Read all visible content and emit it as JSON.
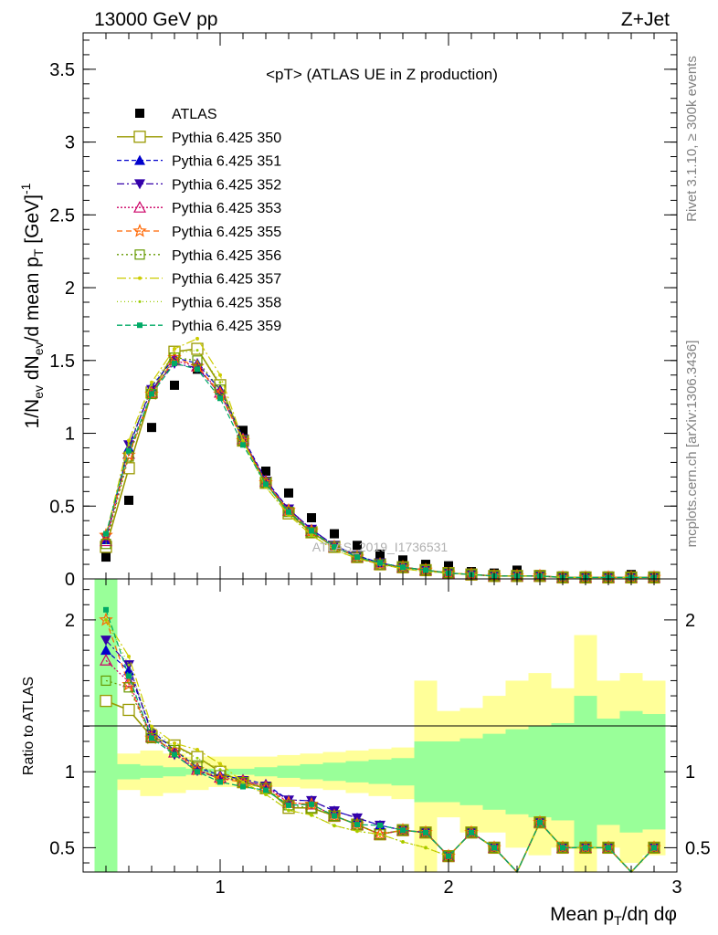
{
  "header": {
    "left": "13000 GeV pp",
    "right": "Z+Jet"
  },
  "side": {
    "rivet": "Rivet 3.1.10, ≥ 300k events",
    "mcplots": "mcplots.cern.ch [arXiv:1306.3436]"
  },
  "chart_data": [
    {
      "type": "scatter",
      "title": "<pT> (ATLAS UE in Z production)",
      "watermark": "ATLAS_2019_I1736531",
      "ylabel": "1/N_ev dN_ev/d mean p_T [GeV]^-1",
      "xlim": [
        0.4,
        3.0
      ],
      "ylim": [
        0,
        3.75
      ],
      "yticks": [
        "0",
        "0.5",
        "1",
        "1.5",
        "2",
        "2.5",
        "3",
        "3.5"
      ],
      "x": [
        0.5,
        0.6,
        0.7,
        0.8,
        0.9,
        1.0,
        1.1,
        1.2,
        1.3,
        1.4,
        1.5,
        1.6,
        1.7,
        1.8,
        1.9,
        2.0,
        2.1,
        2.2,
        2.3,
        2.4,
        2.5,
        2.6,
        2.7,
        2.8,
        2.9
      ],
      "series": [
        {
          "name": "ATLAS",
          "color": "#000000",
          "values": [
            0.15,
            0.54,
            1.04,
            1.33,
            1.44,
            1.33,
            1.02,
            0.74,
            0.59,
            0.42,
            0.31,
            0.23,
            0.17,
            0.13,
            0.1,
            0.09,
            0.05,
            0.04,
            0.06,
            0.03,
            0.02,
            0.02,
            0.02,
            0.03,
            0.02
          ]
        },
        {
          "name": "Pythia 6.425 350",
          "color": "#999900",
          "values": [
            0.22,
            0.76,
            1.28,
            1.56,
            1.58,
            1.33,
            0.95,
            0.66,
            0.45,
            0.32,
            0.22,
            0.15,
            0.1,
            0.08,
            0.06,
            0.04,
            0.03,
            0.02,
            0.02,
            0.02,
            0.01,
            0.01,
            0.01,
            0.01,
            0.01
          ]
        },
        {
          "name": "Pythia 6.425 351",
          "color": "#0000cc",
          "values": [
            0.27,
            0.9,
            1.32,
            1.52,
            1.48,
            1.3,
            0.97,
            0.68,
            0.48,
            0.34,
            0.23,
            0.16,
            0.11,
            0.08,
            0.06,
            0.04,
            0.03,
            0.02,
            0.02,
            0.02,
            0.01,
            0.01,
            0.01,
            0.01,
            0.01
          ]
        },
        {
          "name": "Pythia 6.425 352",
          "color": "#3300aa",
          "values": [
            0.28,
            0.92,
            1.3,
            1.48,
            1.45,
            1.27,
            0.96,
            0.67,
            0.48,
            0.34,
            0.23,
            0.16,
            0.11,
            0.08,
            0.06,
            0.04,
            0.03,
            0.02,
            0.02,
            0.02,
            0.01,
            0.01,
            0.01,
            0.01,
            0.01
          ]
        },
        {
          "name": "Pythia 6.425 353",
          "color": "#cc0066",
          "values": [
            0.26,
            0.86,
            1.28,
            1.5,
            1.46,
            1.28,
            0.96,
            0.67,
            0.47,
            0.33,
            0.22,
            0.15,
            0.1,
            0.08,
            0.06,
            0.04,
            0.03,
            0.02,
            0.02,
            0.02,
            0.01,
            0.01,
            0.01,
            0.01,
            0.01
          ]
        },
        {
          "name": "Pythia 6.425 355",
          "color": "#ff6600",
          "values": [
            0.3,
            0.85,
            1.27,
            1.52,
            1.46,
            1.27,
            0.95,
            0.66,
            0.47,
            0.33,
            0.22,
            0.15,
            0.1,
            0.08,
            0.06,
            0.04,
            0.03,
            0.02,
            0.02,
            0.02,
            0.01,
            0.01,
            0.01,
            0.01,
            0.01
          ]
        },
        {
          "name": "Pythia 6.425 356",
          "color": "#669900",
          "values": [
            0.24,
            0.84,
            1.27,
            1.52,
            1.5,
            1.3,
            0.95,
            0.66,
            0.46,
            0.32,
            0.22,
            0.15,
            0.1,
            0.08,
            0.06,
            0.04,
            0.03,
            0.02,
            0.02,
            0.02,
            0.01,
            0.01,
            0.01,
            0.01,
            0.01
          ]
        },
        {
          "name": "Pythia 6.425 357",
          "color": "#cccc00",
          "values": [
            0.3,
            0.95,
            1.35,
            1.58,
            1.65,
            1.4,
            0.95,
            0.63,
            0.44,
            0.3,
            0.2,
            0.14,
            0.1,
            0.07,
            0.05,
            0.04,
            0.03,
            0.02,
            0.02,
            0.02,
            0.01,
            0.01,
            0.01,
            0.01,
            0.01
          ]
        },
        {
          "name": "Pythia 6.425 358",
          "color": "#99cc00",
          "values": [
            0.3,
            0.92,
            1.33,
            1.55,
            1.57,
            1.35,
            0.94,
            0.63,
            0.44,
            0.3,
            0.2,
            0.14,
            0.1,
            0.07,
            0.05,
            0.04,
            0.03,
            0.02,
            0.02,
            0.02,
            0.01,
            0.01,
            0.01,
            0.01,
            0.01
          ]
        },
        {
          "name": "Pythia 6.425 359",
          "color": "#00aa66",
          "values": [
            0.31,
            0.88,
            1.27,
            1.48,
            1.44,
            1.24,
            0.92,
            0.65,
            0.46,
            0.33,
            0.22,
            0.15,
            0.11,
            0.08,
            0.06,
            0.04,
            0.03,
            0.02,
            0.02,
            0.02,
            0.01,
            0.01,
            0.01,
            0.01,
            0.01
          ]
        }
      ]
    },
    {
      "type": "line",
      "ylabel": "Ratio to ATLAS",
      "xlabel": "Mean p_T/dη dφ",
      "xlim": [
        0.4,
        3.0
      ],
      "ylim": [
        0.34,
        2.27
      ],
      "yticks": [
        "0.5",
        "1",
        "2"
      ],
      "xticks": [
        "1",
        "2",
        "3"
      ],
      "reference_line": 1.0,
      "band_edges": [
        0.45,
        0.55,
        0.65,
        0.75,
        0.85,
        0.95,
        1.05,
        1.15,
        1.25,
        1.35,
        1.45,
        1.55,
        1.65,
        1.75,
        1.85,
        1.95,
        2.05,
        2.15,
        2.25,
        2.35,
        2.45,
        2.55,
        2.65,
        2.75,
        2.85,
        2.95
      ],
      "bands": [
        {
          "name": "total uncertainty",
          "color": "#ffff99",
          "upper": [
            2.3,
            1.12,
            1.14,
            1.12,
            1.1,
            1.1,
            1.1,
            1.1,
            1.11,
            1.12,
            1.13,
            1.14,
            1.15,
            1.16,
            1.6,
            1.4,
            1.42,
            1.5,
            1.6,
            1.65,
            1.55,
            1.9,
            1.6,
            1.65,
            1.6
          ],
          "lower": [
            0.3,
            0.88,
            0.84,
            0.86,
            0.88,
            0.9,
            0.9,
            0.9,
            0.9,
            0.89,
            0.88,
            0.86,
            0.84,
            0.82,
            0.3,
            0.7,
            0.6,
            0.6,
            0.5,
            0.45,
            0.5,
            0.3,
            0.5,
            0.4,
            0.45
          ]
        },
        {
          "name": "statistical uncertainty",
          "color": "#99ff99",
          "upper": [
            2.3,
            1.05,
            1.04,
            1.03,
            1.02,
            1.02,
            1.02,
            1.03,
            1.04,
            1.05,
            1.06,
            1.07,
            1.08,
            1.09,
            1.2,
            1.2,
            1.22,
            1.25,
            1.28,
            1.3,
            1.32,
            1.5,
            1.35,
            1.4,
            1.38
          ],
          "lower": [
            0.3,
            0.95,
            0.96,
            0.97,
            0.98,
            0.98,
            0.98,
            0.97,
            0.96,
            0.95,
            0.94,
            0.93,
            0.92,
            0.91,
            0.8,
            0.8,
            0.78,
            0.75,
            0.72,
            0.7,
            0.68,
            0.5,
            0.65,
            0.6,
            0.62
          ]
        }
      ]
    }
  ]
}
